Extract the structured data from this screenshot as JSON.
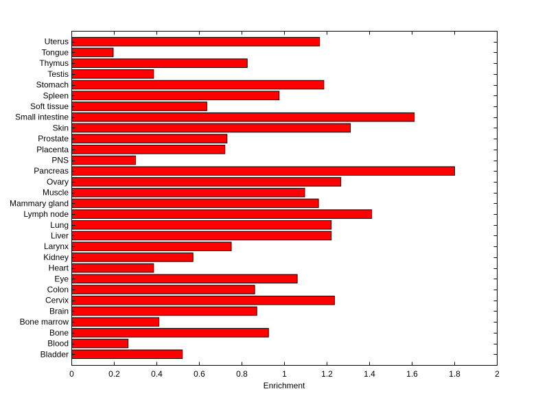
{
  "chart_data": {
    "type": "bar",
    "orientation": "horizontal",
    "title": "",
    "xlabel": "Enrichment",
    "ylabel": "",
    "xlim": [
      0,
      2
    ],
    "x_ticks": [
      0,
      0.2,
      0.4,
      0.6,
      0.8,
      1,
      1.2,
      1.4,
      1.6,
      1.8,
      2
    ],
    "grid": false,
    "bar_color": "#ff0000",
    "bar_edge_color": "#000000",
    "categories": [
      "Bladder",
      "Blood",
      "Bone",
      "Bone marrow",
      "Brain",
      "Cervix",
      "Colon",
      "Eye",
      "Heart",
      "Kidney",
      "Larynx",
      "Liver",
      "Lung",
      "Lymph node",
      "Mammary gland",
      "Muscle",
      "Ovary",
      "Pancreas",
      "PNS",
      "Placenta",
      "Prostate",
      "Skin",
      "Small intestine",
      "Soft tissue",
      "Spleen",
      "Stomach",
      "Testis",
      "Thymus",
      "Tongue",
      "Uterus"
    ],
    "values": [
      0.52,
      0.265,
      0.925,
      0.41,
      0.87,
      1.235,
      0.86,
      1.06,
      0.385,
      0.57,
      0.75,
      1.22,
      1.22,
      1.41,
      1.16,
      1.095,
      1.265,
      1.8,
      0.3,
      0.72,
      0.73,
      1.31,
      1.61,
      0.635,
      0.975,
      1.185,
      0.385,
      0.825,
      0.195,
      1.165
    ]
  }
}
